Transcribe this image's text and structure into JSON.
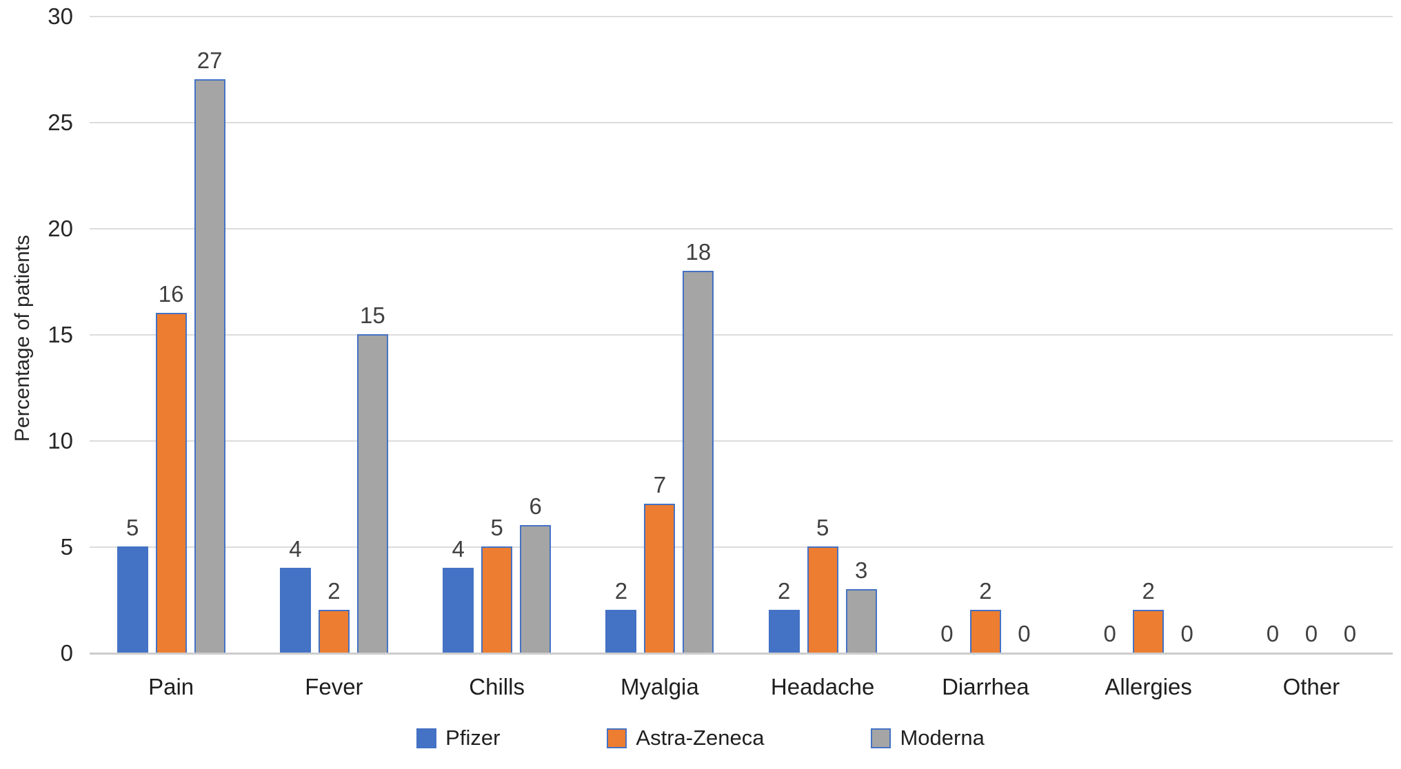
{
  "chart_data": {
    "type": "bar",
    "title": "",
    "categories": [
      "Pain",
      "Fever",
      "Chills",
      "Myalgia",
      "Headache",
      "Diarrhea",
      "Allergies",
      "Other"
    ],
    "series": [
      {
        "name": "Pfizer",
        "color": "#4472C4",
        "values": [
          5,
          4,
          4,
          2,
          2,
          0,
          0,
          0
        ]
      },
      {
        "name": "Astra-Zeneca",
        "color": "#ED7D31",
        "values": [
          16,
          2,
          5,
          7,
          5,
          2,
          2,
          0
        ]
      },
      {
        "name": "Moderna",
        "color": "#A5A5A5",
        "values": [
          27,
          15,
          6,
          18,
          3,
          0,
          0,
          0
        ]
      }
    ],
    "xlabel": "",
    "ylabel": "Percentage of patients",
    "ylim": [
      0,
      30
    ],
    "yticks": [
      0,
      5,
      10,
      15,
      20,
      25,
      30
    ],
    "grid": true,
    "data_labels": true,
    "legend_position": "bottom",
    "bar_border_color": "#4472C4",
    "gridline_color": "#dcdcdc"
  }
}
